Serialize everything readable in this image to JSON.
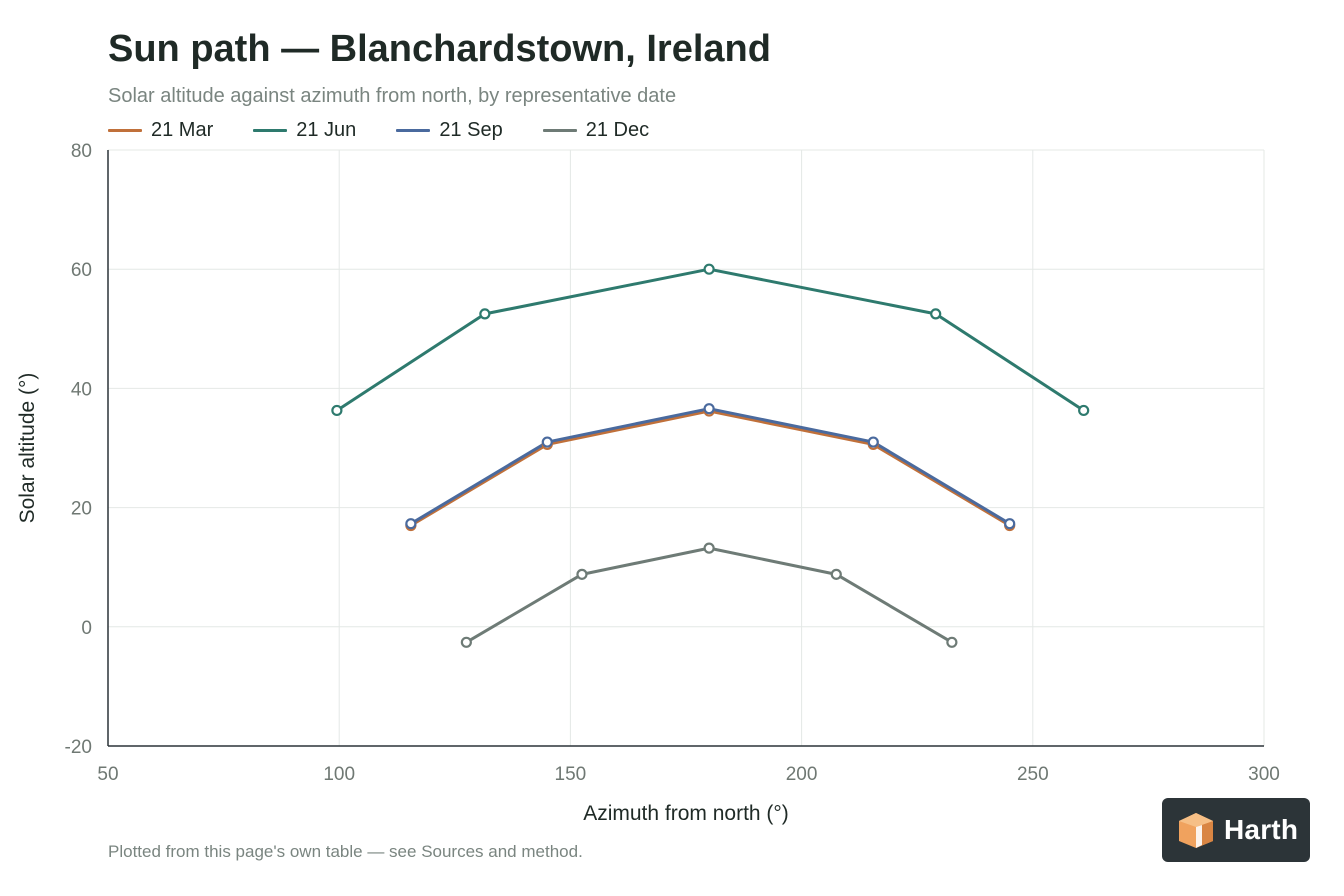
{
  "header": {
    "title": "Sun path — Blanchardstown, Ireland",
    "subtitle": "Solar altitude against azimuth from north, by representative date"
  },
  "footer": {
    "note": "Plotted from this page's own table — see Sources and method."
  },
  "brand": {
    "name": "Harth",
    "background": "#2c3438",
    "logo_color": "#f0a25e"
  },
  "chart_data": {
    "type": "line",
    "xlabel": "Azimuth from north (°)",
    "ylabel": "Solar altitude (°)",
    "xlim": [
      50,
      300
    ],
    "ylim": [
      -20,
      80
    ],
    "xticks": [
      50,
      100,
      150,
      200,
      250,
      300
    ],
    "yticks": [
      -20,
      0,
      20,
      40,
      60,
      80
    ],
    "grid": true,
    "legend_position": "top-left",
    "series": [
      {
        "name": "21 Mar",
        "color": "#c0703a",
        "points": [
          [
            115.5,
            17
          ],
          [
            145,
            30.6
          ],
          [
            180,
            36.2
          ],
          [
            215.5,
            30.6
          ],
          [
            245,
            17
          ]
        ]
      },
      {
        "name": "21 Jun",
        "color": "#2e7a6e",
        "points": [
          [
            99.5,
            36.3
          ],
          [
            131.5,
            52.5
          ],
          [
            180,
            60
          ],
          [
            229,
            52.5
          ],
          [
            261,
            36.3
          ]
        ]
      },
      {
        "name": "21 Sep",
        "color": "#4a6a9e",
        "points": [
          [
            115.5,
            17.3
          ],
          [
            145,
            31
          ],
          [
            180,
            36.6
          ],
          [
            215.5,
            31
          ],
          [
            245,
            17.3
          ]
        ]
      },
      {
        "name": "21 Dec",
        "color": "#6e7b76",
        "points": [
          [
            127.5,
            -2.6
          ],
          [
            152.5,
            8.8
          ],
          [
            180,
            13.2
          ],
          [
            207.5,
            8.8
          ],
          [
            232.5,
            -2.6
          ]
        ]
      }
    ]
  }
}
